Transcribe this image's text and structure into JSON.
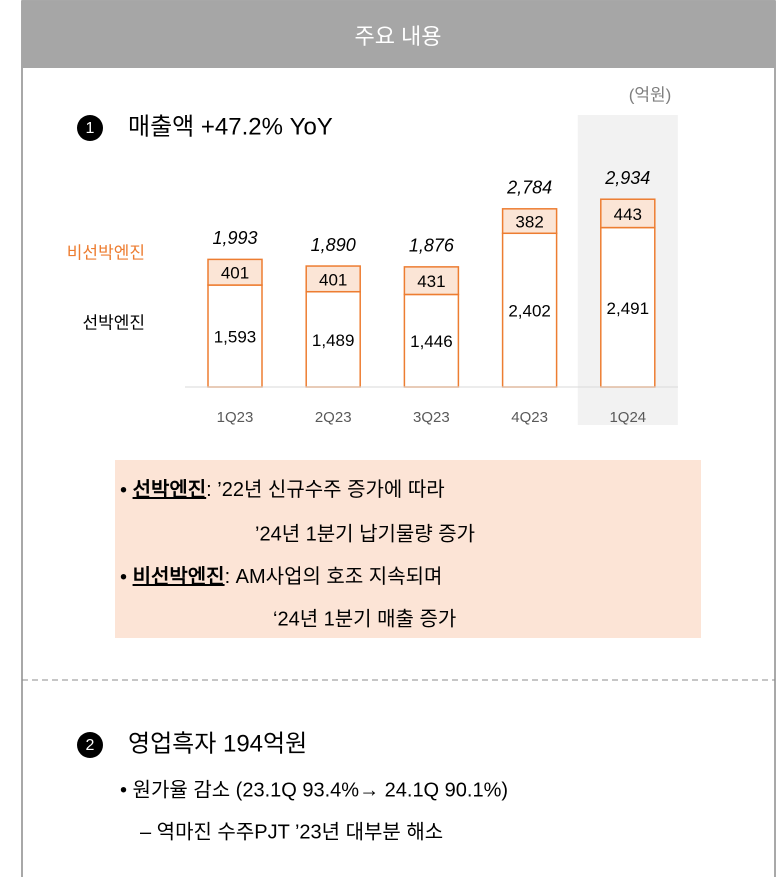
{
  "header": {
    "title": "주요 내용"
  },
  "sections": [
    {
      "number": "1",
      "title": "매출액 +47.2% YoY"
    },
    {
      "number": "2",
      "title": "영업흑자 194억원"
    }
  ],
  "chart_data": {
    "type": "stacked_bar",
    "unit": "(억원)",
    "categories": [
      "1Q23",
      "2Q23",
      "3Q23",
      "4Q23",
      "1Q24"
    ],
    "series": [
      {
        "name": "선박엔진",
        "color": "#ffffff",
        "values": [
          1593,
          1489,
          1446,
          2402,
          2491
        ],
        "value_labels": [
          "1,593",
          "1,489",
          "1,446",
          "2,402",
          "2,491"
        ]
      },
      {
        "name": "비선박엔진",
        "color": "#fbe5d6",
        "values": [
          401,
          401,
          431,
          382,
          443
        ]
      }
    ],
    "totals": [
      1993,
      1890,
      1876,
      2784,
      2934
    ],
    "total_labels": [
      "1,993",
      "1,890",
      "1,876",
      "2,784",
      "2,934"
    ],
    "edge_color": "#ed7d31",
    "highlight": "1Q24"
  },
  "notes": [
    {
      "term": "선박엔진",
      "lines": [
        ": ’22년 신규수주 증가에 따라",
        "’24년 1분기 납기물량 증가"
      ]
    },
    {
      "term": "비선박엔진",
      "lines": [
        ": AM사업의 호조 지속되며",
        "‘24년 1분기 매출 증가"
      ]
    }
  ],
  "details": [
    "• 원가율 감소 (23.1Q  93.4%→ 24.1Q 90.1%)",
    "– 역마진 수주PJT ’23년 대부분 해소"
  ]
}
